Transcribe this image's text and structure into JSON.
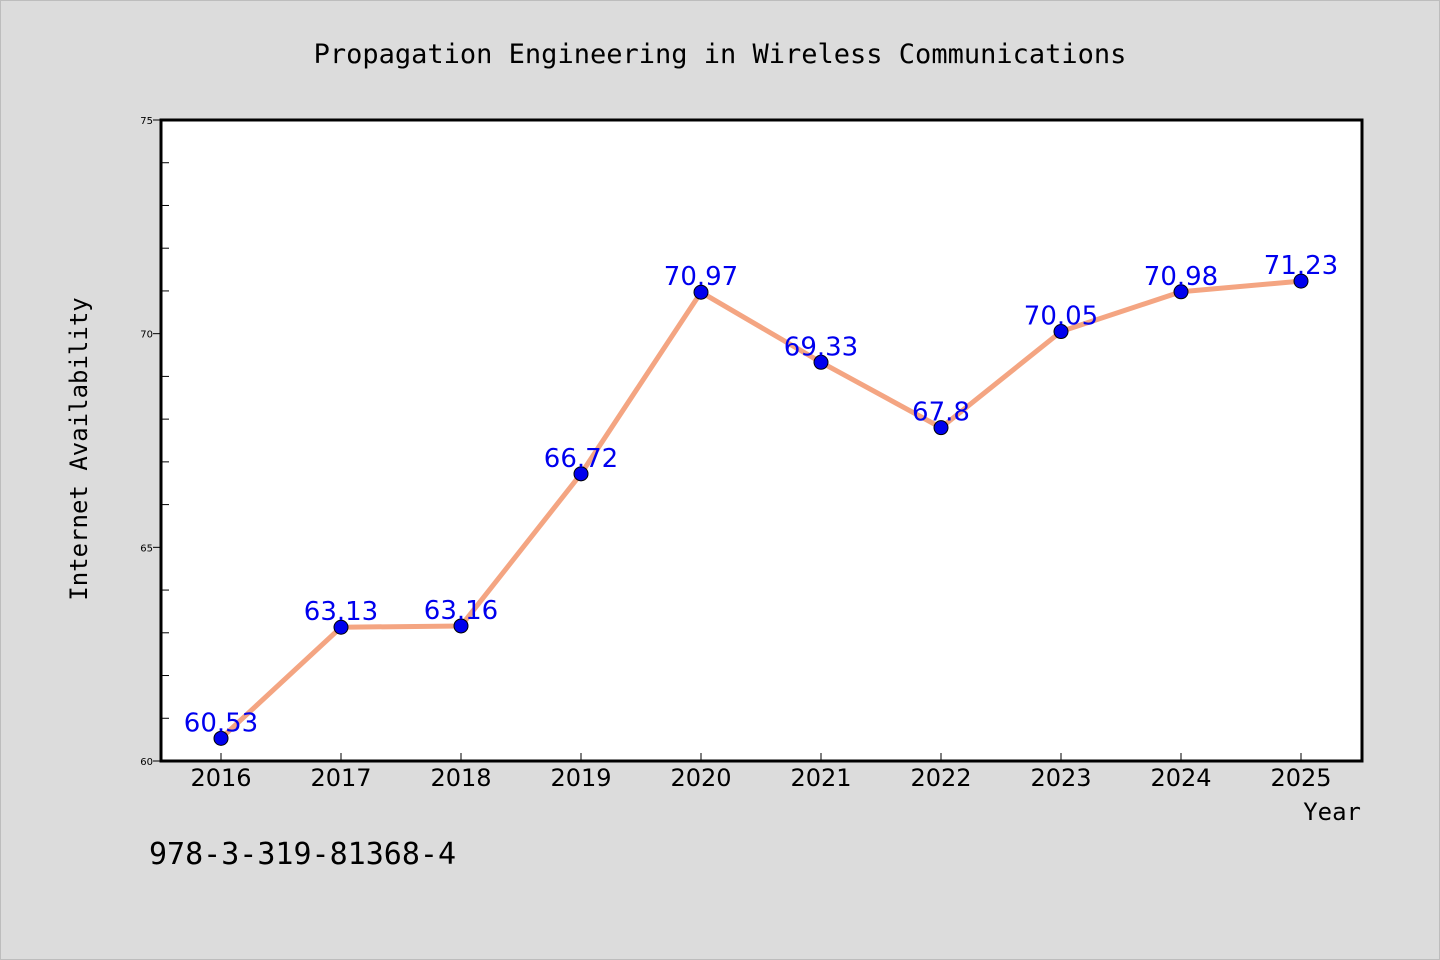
{
  "chart_data": {
    "type": "line",
    "title": "Propagation Engineering in Wireless Communications",
    "xlabel": "Year",
    "ylabel": "Internet Availability",
    "categories": [
      "2016",
      "2017",
      "2018",
      "2019",
      "2020",
      "2021",
      "2022",
      "2023",
      "2024",
      "2025"
    ],
    "series": [
      {
        "values": [
          60.53,
          63.13,
          63.16,
          66.72,
          70.97,
          69.33,
          67.8,
          70.05,
          70.98,
          71.23
        ],
        "data_labels": [
          "60.53",
          "63.13",
          "63.16",
          "66.72",
          "70.97",
          "69.33",
          "67.8",
          "70.05",
          "70.98",
          "71.23"
        ]
      }
    ],
    "ylim": [
      60,
      75
    ],
    "yticks": [
      60,
      65,
      70,
      75
    ],
    "ytick_labels": [
      "60",
      "65",
      "70",
      "75"
    ],
    "line_color": "#f4a582",
    "marker_color": "#0000ee",
    "label_color": "#0000ee",
    "grid": false,
    "legend": "none"
  },
  "footer": {
    "isbn": "978-3-319-81368-4"
  }
}
